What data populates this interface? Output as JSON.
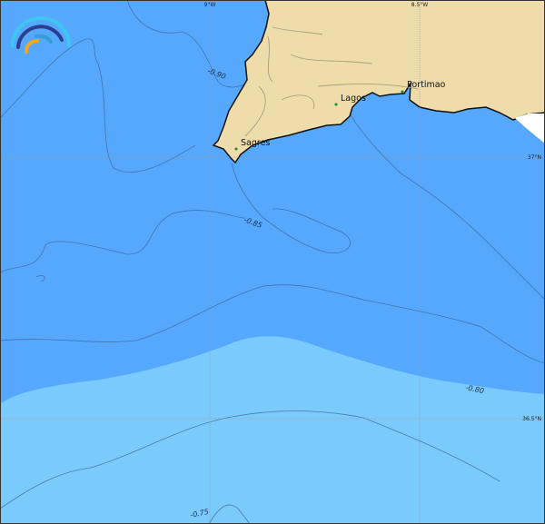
{
  "colors": {
    "deep_sea": "#55a8fd",
    "shallow_sea": "#7acafd",
    "land": "#efdcab",
    "coast": "#111111",
    "contour": "#3c6a9a",
    "grid": "#8a9aa8",
    "city_dot": "#1a8a1a"
  },
  "graticule": {
    "lon_labels": [
      "9°W",
      "8.5°W"
    ],
    "lat_labels": [
      "37°N",
      "36.5°N"
    ]
  },
  "contour_labels": [
    "-0.90",
    "-0.85",
    "-0.80",
    "-0.75"
  ],
  "cities": [
    {
      "name": "Sagres"
    },
    {
      "name": "Lagos"
    },
    {
      "name": "Portimao"
    }
  ],
  "logo": {
    "icon": "rainbow-arc-logo"
  }
}
